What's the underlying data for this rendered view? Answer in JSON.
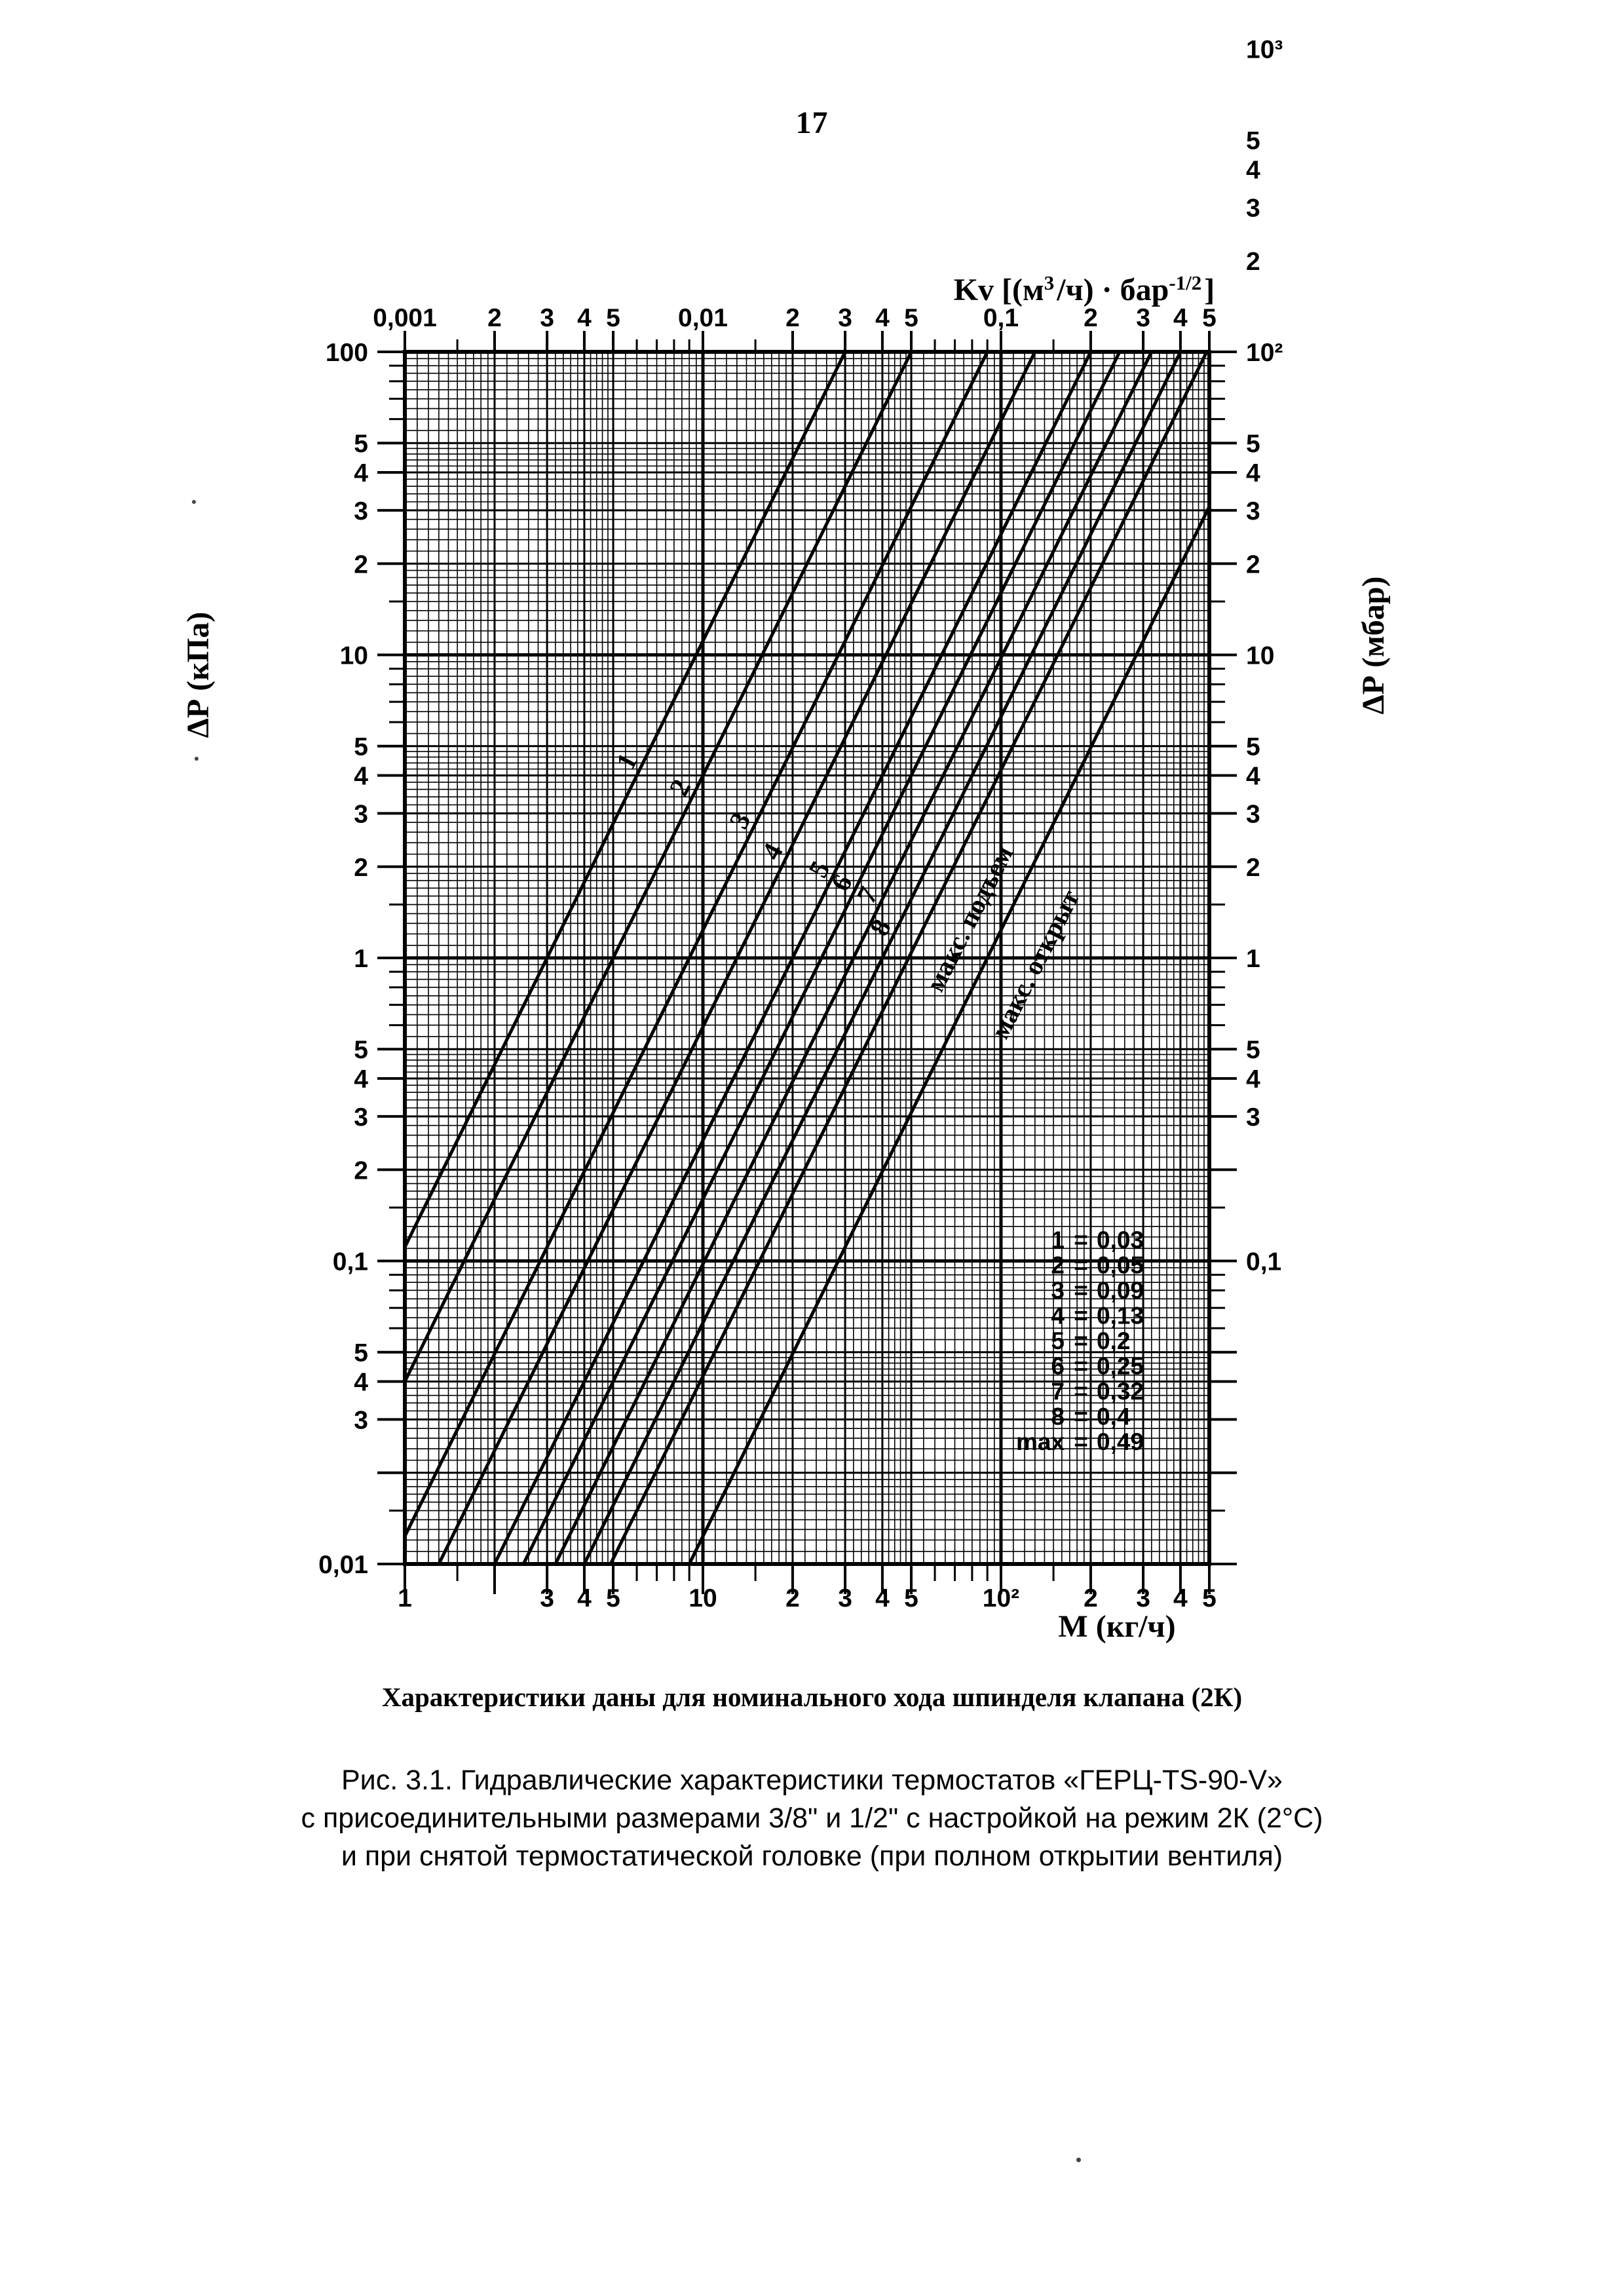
{
  "page": {
    "number": "17"
  },
  "chart_data": {
    "type": "line",
    "description": "Log-log nomogram: pressure drop vs mass flow for valve presettings; straight lines of slope 2 (dP = 100*(M/(1000*Kv))^2 kPa)",
    "x_axis_top": {
      "title_parts": {
        "pre": "Kv [(м",
        "sup1": "3",
        "mid": "/ч) · бар",
        "sup2": "-1/2",
        "post": "]"
      },
      "min": 0.001,
      "max": 0.5,
      "ticks": [
        {
          "v": 0.001,
          "t": "0,001"
        },
        {
          "v": 0.002,
          "t": "2"
        },
        {
          "v": 0.003,
          "t": "3"
        },
        {
          "v": 0.004,
          "t": "4"
        },
        {
          "v": 0.005,
          "t": "5"
        },
        {
          "v": 0.01,
          "t": "0,01"
        },
        {
          "v": 0.02,
          "t": "2"
        },
        {
          "v": 0.03,
          "t": "3"
        },
        {
          "v": 0.04,
          "t": "4"
        },
        {
          "v": 0.05,
          "t": "5"
        },
        {
          "v": 0.1,
          "t": "0,1"
        },
        {
          "v": 0.2,
          "t": "2"
        },
        {
          "v": 0.3,
          "t": "3"
        },
        {
          "v": 0.4,
          "t": "4"
        },
        {
          "v": 0.5,
          "t": "5"
        }
      ]
    },
    "x_axis_bottom": {
      "title": "М  (кг/ч)",
      "min": 1,
      "max": 500,
      "ticks": [
        {
          "v": 1,
          "t": "1"
        },
        {
          "v": 3,
          "t": "3"
        },
        {
          "v": 4,
          "t": "4"
        },
        {
          "v": 5,
          "t": "5"
        },
        {
          "v": 10,
          "t": "10"
        },
        {
          "v": 20,
          "t": "2"
        },
        {
          "v": 30,
          "t": "3"
        },
        {
          "v": 40,
          "t": "4"
        },
        {
          "v": 50,
          "t": "5"
        },
        {
          "v": 100,
          "t": "10²"
        },
        {
          "v": 200,
          "t": "2"
        },
        {
          "v": 300,
          "t": "3"
        },
        {
          "v": 400,
          "t": "4"
        },
        {
          "v": 500,
          "t": "5"
        }
      ]
    },
    "y_axis_left": {
      "title": "ΔР (кПа)",
      "min": 0.01,
      "max": 100,
      "ticks": [
        {
          "v": 100,
          "t": "100"
        },
        {
          "v": 50,
          "t": "5"
        },
        {
          "v": 40,
          "t": "4"
        },
        {
          "v": 30,
          "t": "3"
        },
        {
          "v": 20,
          "t": "2"
        },
        {
          "v": 10,
          "t": "10"
        },
        {
          "v": 5,
          "t": "5"
        },
        {
          "v": 4,
          "t": "4"
        },
        {
          "v": 3,
          "t": "3"
        },
        {
          "v": 2,
          "t": "2"
        },
        {
          "v": 1,
          "t": "1"
        },
        {
          "v": 0.5,
          "t": "5"
        },
        {
          "v": 0.4,
          "t": "4"
        },
        {
          "v": 0.3,
          "t": "3"
        },
        {
          "v": 0.2,
          "t": "2"
        },
        {
          "v": 0.1,
          "t": "0,1"
        },
        {
          "v": 0.05,
          "t": "5"
        },
        {
          "v": 0.04,
          "t": "4"
        },
        {
          "v": 0.03,
          "t": "3"
        },
        {
          "v": 0.01,
          "t": "0,01"
        }
      ]
    },
    "y_axis_right": {
      "title": "ΔР (мбар)",
      "min": 0.1,
      "max": 1000,
      "ticks": [
        {
          "v": 1000,
          "t": "10³"
        },
        {
          "v": 500,
          "t": "5"
        },
        {
          "v": 400,
          "t": "4"
        },
        {
          "v": 300,
          "t": "3"
        },
        {
          "v": 200,
          "t": "2"
        },
        {
          "v": 100,
          "t": "10²"
        },
        {
          "v": 50,
          "t": "5"
        },
        {
          "v": 40,
          "t": "4"
        },
        {
          "v": 30,
          "t": "3"
        },
        {
          "v": 20,
          "t": "2"
        },
        {
          "v": 10,
          "t": "10"
        },
        {
          "v": 5,
          "t": "5"
        },
        {
          "v": 4,
          "t": "4"
        },
        {
          "v": 3,
          "t": "3"
        },
        {
          "v": 2,
          "t": "2"
        },
        {
          "v": 1,
          "t": "1"
        },
        {
          "v": 0.5,
          "t": "5"
        },
        {
          "v": 0.4,
          "t": "4"
        },
        {
          "v": 0.3,
          "t": "3"
        },
        {
          "v": 0.1,
          "t": "0,1"
        }
      ]
    },
    "curves": [
      {
        "name": "1",
        "kv": 0.03,
        "label_dp": 4.7
      },
      {
        "name": "2",
        "kv": 0.05,
        "label_dp": 3.85
      },
      {
        "name": "3",
        "kv": 0.09,
        "label_dp": 3.0
      },
      {
        "name": "4",
        "kv": 0.13,
        "label_dp": 2.37
      },
      {
        "name": "5",
        "kv": 0.2,
        "label_dp": 2.07
      },
      {
        "name": "6",
        "kv": 0.25,
        "label_dp": 1.87
      },
      {
        "name": "7",
        "kv": 0.32,
        "label_dp": 1.7
      },
      {
        "name": "8",
        "kv": 0.4,
        "label_dp": 1.33
      },
      {
        "name": "макс. подъем",
        "kv": 0.49,
        "word_label": true
      },
      {
        "name": "макс. открыт",
        "kv": 0.9,
        "word_label": true
      }
    ],
    "legend": {
      "separator": "=",
      "entries": [
        {
          "k": "1",
          "v": "0,03"
        },
        {
          "k": "2",
          "v": "0,05"
        },
        {
          "k": "3",
          "v": "0,09"
        },
        {
          "k": "4",
          "v": "0,13"
        },
        {
          "k": "5",
          "v": "0,2"
        },
        {
          "k": "6",
          "v": "0,25"
        },
        {
          "k": "7",
          "v": "0,32"
        },
        {
          "k": "8",
          "v": "0,4"
        },
        {
          "k": "max",
          "v": "0,49"
        }
      ]
    },
    "note": "Характеристики даны для номинального хода шпинделя клапана (2К)"
  },
  "figure_caption": {
    "lines": [
      "Рис. 3.1. Гидравлические характеристики термостатов «ГЕРЦ-TS-90-V»",
      "с присоединительными размерами 3/8\" и 1/2\" с настройкой на режим 2К (2°С)",
      "и при снятой термостатической головке (при полном открытии вентиля)"
    ]
  }
}
